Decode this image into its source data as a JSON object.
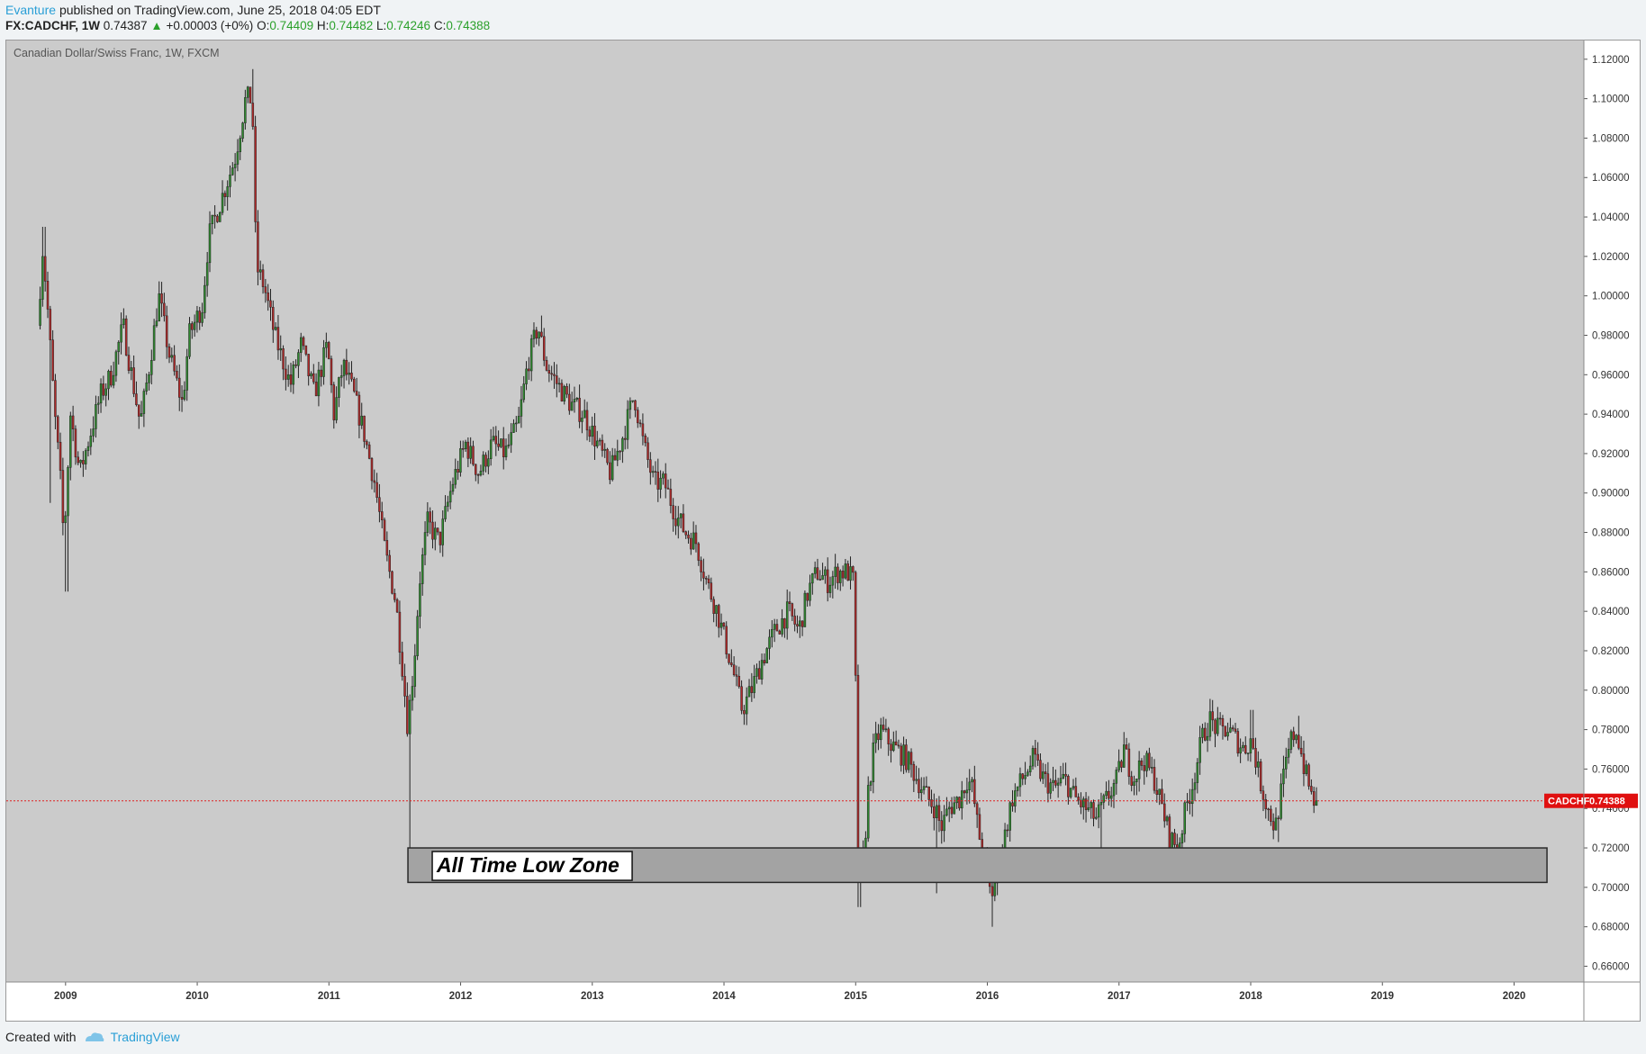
{
  "header": {
    "author": "Evanture",
    "published": "published on TradingView.com, June 25, 2018 04:05 EDT"
  },
  "ticker": {
    "symbol": "FX:CADCHF, 1W",
    "last": "0.74387",
    "change": "+0.00003 (+0%)",
    "o_label": "O:",
    "o": "0.74409",
    "h_label": "H:",
    "h": "0.74482",
    "l_label": "L:",
    "l": "0.74246",
    "c_label": "C:",
    "c": "0.74388"
  },
  "footer": {
    "created_with": "Created with",
    "brand": "TradingView"
  },
  "colors": {
    "plot_bg": "#cbcbcb",
    "up": "#2f8a2f",
    "down": "#b02a2a",
    "wick": "#222222",
    "price_line": "#e02020",
    "zone_fill": "#a3a3a3",
    "tag_bg": "#e01010"
  },
  "chart_data": {
    "type": "candlestick",
    "title": "Canadian Dollar/Swiss Franc, 1W, FXCM",
    "price_tag": {
      "label": "CADCHF",
      "value": "0.74388",
      "price": 0.74388
    },
    "zone": {
      "label": "All Time Low Zone",
      "low": 0.7025,
      "high": 0.72,
      "start": 2011.6,
      "end": 2020.25
    },
    "xlim": [
      2008.55,
      2020.53
    ],
    "ylim": [
      0.652,
      1.1295
    ],
    "x_ticks": [
      {
        "label": "2009",
        "t": 2009.0
      },
      {
        "label": "2010",
        "t": 2010.0
      },
      {
        "label": "2011",
        "t": 2011.0
      },
      {
        "label": "2012",
        "t": 2012.0
      },
      {
        "label": "2013",
        "t": 2013.0
      },
      {
        "label": "2014",
        "t": 2014.0
      },
      {
        "label": "2015",
        "t": 2015.0
      },
      {
        "label": "2016",
        "t": 2016.0
      },
      {
        "label": "2017",
        "t": 2017.0
      },
      {
        "label": "2018",
        "t": 2018.0
      },
      {
        "label": "2019",
        "t": 2019.0
      },
      {
        "label": "2020",
        "t": 2020.0
      }
    ],
    "y_ticks": [
      {
        "label": "0.66000",
        "v": 0.66
      },
      {
        "label": "0.68000",
        "v": 0.68
      },
      {
        "label": "0.70000",
        "v": 0.7
      },
      {
        "label": "0.72000",
        "v": 0.72
      },
      {
        "label": "0.74000",
        "v": 0.74
      },
      {
        "label": "0.76000",
        "v": 0.76
      },
      {
        "label": "0.78000",
        "v": 0.78
      },
      {
        "label": "0.80000",
        "v": 0.8
      },
      {
        "label": "0.82000",
        "v": 0.82
      },
      {
        "label": "0.84000",
        "v": 0.84
      },
      {
        "label": "0.86000",
        "v": 0.86
      },
      {
        "label": "0.88000",
        "v": 0.88
      },
      {
        "label": "0.90000",
        "v": 0.9
      },
      {
        "label": "0.92000",
        "v": 0.92
      },
      {
        "label": "0.94000",
        "v": 0.94
      },
      {
        "label": "0.96000",
        "v": 0.96
      },
      {
        "label": "0.98000",
        "v": 0.98
      },
      {
        "label": "1.00000",
        "v": 1.0
      },
      {
        "label": "1.02000",
        "v": 1.02
      },
      {
        "label": "1.04000",
        "v": 1.04
      },
      {
        "label": "1.06000",
        "v": 1.06
      },
      {
        "label": "1.08000",
        "v": 1.08
      },
      {
        "label": "1.10000",
        "v": 1.1
      },
      {
        "label": "1.12000",
        "v": 1.12
      }
    ],
    "price_path": [
      [
        2008.8,
        0.985
      ],
      [
        2008.84,
        1.025
      ],
      [
        2008.88,
        0.99
      ],
      [
        2008.93,
        0.94
      ],
      [
        2008.97,
        0.91
      ],
      [
        2009.0,
        0.875
      ],
      [
        2009.05,
        0.94
      ],
      [
        2009.12,
        0.91
      ],
      [
        2009.2,
        0.93
      ],
      [
        2009.28,
        0.95
      ],
      [
        2009.36,
        0.96
      ],
      [
        2009.45,
        0.985
      ],
      [
        2009.5,
        0.965
      ],
      [
        2009.58,
        0.935
      ],
      [
        2009.65,
        0.965
      ],
      [
        2009.72,
        1.0
      ],
      [
        2009.8,
        0.97
      ],
      [
        2009.9,
        0.945
      ],
      [
        2009.95,
        0.98
      ],
      [
        2010.05,
        0.995
      ],
      [
        2010.1,
        1.03
      ],
      [
        2010.2,
        1.05
      ],
      [
        2010.3,
        1.07
      ],
      [
        2010.38,
        1.1
      ],
      [
        2010.43,
        1.1
      ],
      [
        2010.46,
        1.015
      ],
      [
        2010.52,
        1.005
      ],
      [
        2010.6,
        0.98
      ],
      [
        2010.72,
        0.955
      ],
      [
        2010.8,
        0.975
      ],
      [
        2010.9,
        0.95
      ],
      [
        2011.0,
        0.975
      ],
      [
        2011.05,
        0.94
      ],
      [
        2011.12,
        0.965
      ],
      [
        2011.2,
        0.95
      ],
      [
        2011.28,
        0.93
      ],
      [
        2011.36,
        0.905
      ],
      [
        2011.44,
        0.87
      ],
      [
        2011.52,
        0.845
      ],
      [
        2011.57,
        0.812
      ],
      [
        2011.61,
        0.782
      ],
      [
        2011.66,
        0.815
      ],
      [
        2011.7,
        0.855
      ],
      [
        2011.76,
        0.885
      ],
      [
        2011.85,
        0.875
      ],
      [
        2011.95,
        0.905
      ],
      [
        2012.05,
        0.925
      ],
      [
        2012.15,
        0.91
      ],
      [
        2012.25,
        0.925
      ],
      [
        2012.35,
        0.92
      ],
      [
        2012.45,
        0.935
      ],
      [
        2012.52,
        0.965
      ],
      [
        2012.6,
        0.985
      ],
      [
        2012.66,
        0.965
      ],
      [
        2012.75,
        0.955
      ],
      [
        2012.85,
        0.945
      ],
      [
        2012.95,
        0.94
      ],
      [
        2013.05,
        0.925
      ],
      [
        2013.15,
        0.91
      ],
      [
        2013.25,
        0.93
      ],
      [
        2013.33,
        0.95
      ],
      [
        2013.4,
        0.925
      ],
      [
        2013.48,
        0.905
      ],
      [
        2013.56,
        0.905
      ],
      [
        2013.64,
        0.89
      ],
      [
        2013.72,
        0.88
      ],
      [
        2013.8,
        0.875
      ],
      [
        2013.88,
        0.855
      ],
      [
        2013.96,
        0.84
      ],
      [
        2014.02,
        0.825
      ],
      [
        2014.08,
        0.81
      ],
      [
        2014.15,
        0.79
      ],
      [
        2014.22,
        0.8
      ],
      [
        2014.3,
        0.815
      ],
      [
        2014.4,
        0.83
      ],
      [
        2014.5,
        0.84
      ],
      [
        2014.58,
        0.83
      ],
      [
        2014.65,
        0.85
      ],
      [
        2014.72,
        0.86
      ],
      [
        2014.8,
        0.855
      ],
      [
        2014.88,
        0.86
      ],
      [
        2014.95,
        0.86
      ],
      [
        2015.0,
        0.855
      ],
      [
        2015.03,
        0.72
      ],
      [
        2015.07,
        0.705
      ],
      [
        2015.1,
        0.745
      ],
      [
        2015.15,
        0.77
      ],
      [
        2015.2,
        0.78
      ],
      [
        2015.25,
        0.775
      ],
      [
        2015.32,
        0.77
      ],
      [
        2015.4,
        0.765
      ],
      [
        2015.48,
        0.755
      ],
      [
        2015.56,
        0.745
      ],
      [
        2015.62,
        0.74
      ],
      [
        2015.66,
        0.73
      ],
      [
        2015.72,
        0.74
      ],
      [
        2015.8,
        0.745
      ],
      [
        2015.86,
        0.755
      ],
      [
        2015.9,
        0.75
      ],
      [
        2015.94,
        0.73
      ],
      [
        2016.0,
        0.71
      ],
      [
        2016.04,
        0.695
      ],
      [
        2016.08,
        0.705
      ],
      [
        2016.14,
        0.725
      ],
      [
        2016.2,
        0.745
      ],
      [
        2016.28,
        0.755
      ],
      [
        2016.36,
        0.765
      ],
      [
        2016.44,
        0.755
      ],
      [
        2016.52,
        0.75
      ],
      [
        2016.6,
        0.755
      ],
      [
        2016.68,
        0.745
      ],
      [
        2016.76,
        0.74
      ],
      [
        2016.84,
        0.735
      ],
      [
        2016.92,
        0.745
      ],
      [
        2017.0,
        0.755
      ],
      [
        2017.05,
        0.77
      ],
      [
        2017.12,
        0.755
      ],
      [
        2017.2,
        0.765
      ],
      [
        2017.28,
        0.755
      ],
      [
        2017.34,
        0.74
      ],
      [
        2017.4,
        0.725
      ],
      [
        2017.46,
        0.72
      ],
      [
        2017.52,
        0.74
      ],
      [
        2017.58,
        0.755
      ],
      [
        2017.64,
        0.775
      ],
      [
        2017.7,
        0.785
      ],
      [
        2017.76,
        0.78
      ],
      [
        2017.84,
        0.78
      ],
      [
        2017.9,
        0.775
      ],
      [
        2017.96,
        0.77
      ],
      [
        2018.02,
        0.775
      ],
      [
        2018.08,
        0.755
      ],
      [
        2018.14,
        0.74
      ],
      [
        2018.2,
        0.73
      ],
      [
        2018.26,
        0.755
      ],
      [
        2018.32,
        0.775
      ],
      [
        2018.36,
        0.78
      ],
      [
        2018.42,
        0.76
      ],
      [
        2018.48,
        0.745
      ],
      [
        2018.5,
        0.744
      ]
    ],
    "extremes": [
      [
        2008.83,
        1.035,
        "hi"
      ],
      [
        2008.88,
        0.895,
        "lo"
      ],
      [
        2009.0,
        0.85,
        "lo"
      ],
      [
        2010.42,
        1.115,
        "hi"
      ],
      [
        2011.61,
        0.71,
        "lo"
      ],
      [
        2012.6,
        0.99,
        "hi"
      ],
      [
        2015.02,
        0.69,
        "lo"
      ],
      [
        2015.6,
        0.697,
        "lo"
      ],
      [
        2016.03,
        0.68,
        "lo"
      ],
      [
        2016.85,
        0.705,
        "lo"
      ],
      [
        2017.7,
        0.795,
        "hi"
      ],
      [
        2018.0,
        0.79,
        "hi"
      ],
      [
        2018.2,
        0.723,
        "lo"
      ],
      [
        2018.35,
        0.787,
        "hi"
      ]
    ]
  }
}
